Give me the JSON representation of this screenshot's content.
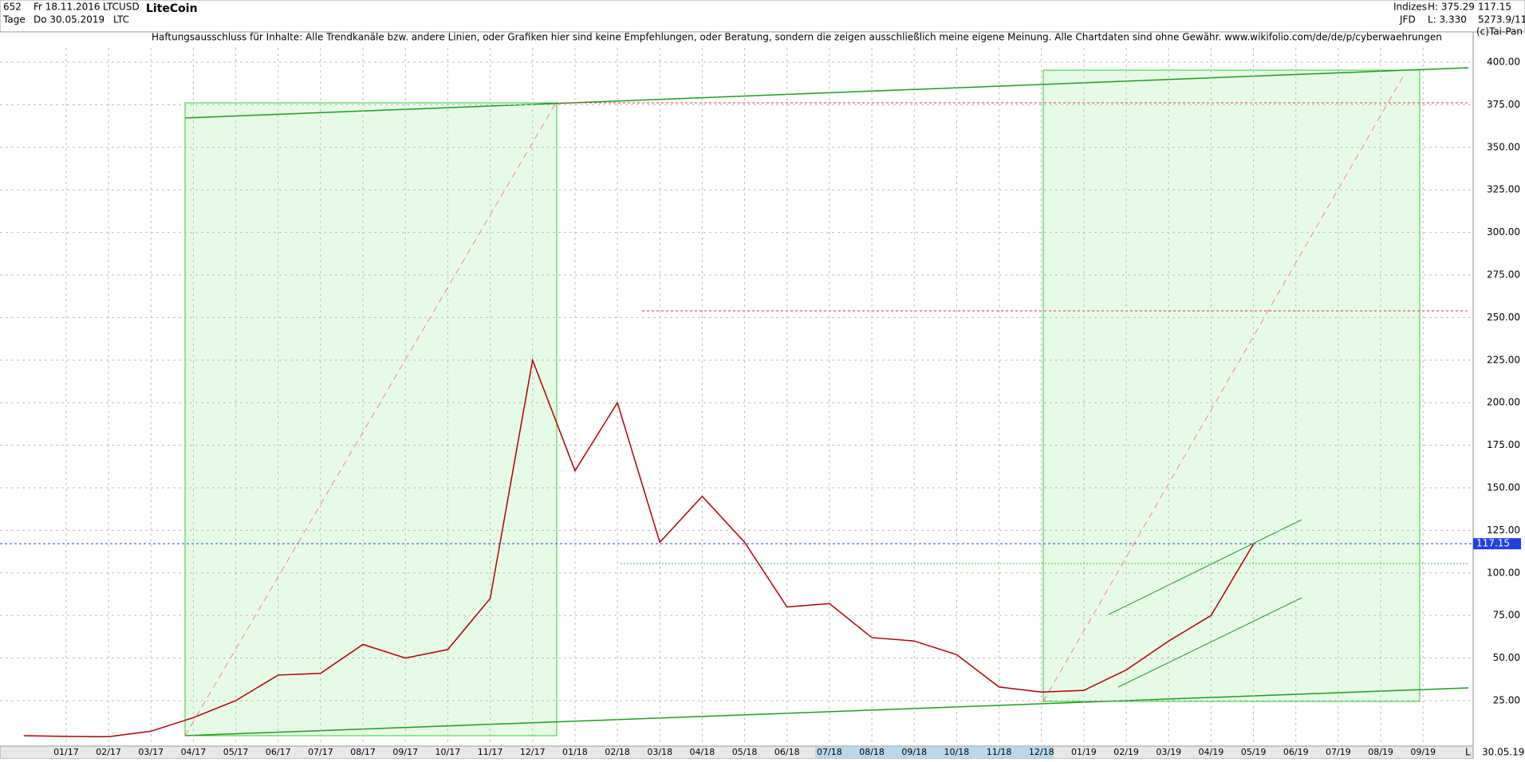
{
  "header": {
    "count": "652",
    "start_date": "Fr 18.11.2016",
    "period": "Tage",
    "end_date": "Do 30.05.2019",
    "symbol": "LTCUSD",
    "short": "LTC",
    "group": "Indizes",
    "source": "JFD",
    "high": "H: 375.29",
    "low": "L: 3.330",
    "last": "117.15",
    "extra": "5273.9/11",
    "copyright": "(c)Tai-Pan",
    "disclaimer": "Haftungsausschluss für Inhalte: Alle Trendkanäle bzw. andere Linien, oder Grafiken hier sind keine Empfehlungen, oder Beratung, sondern die zeigen ausschließlich meine eigene Meinung. Alle Chartdaten sind ohne Gewähr.  www.wikifolio.com/de/de/p/cyberwaehrungen"
  },
  "footer": {
    "date": "30.05.19",
    "scale": "L"
  },
  "chart_data": {
    "type": "line",
    "title": "LiteCoin",
    "categories": [
      null,
      "01/17",
      "02/17",
      "03/17",
      "04/17",
      "05/17",
      "06/17",
      "07/17",
      "08/17",
      "09/17",
      "10/17",
      "11/17",
      "12/17",
      "01/18",
      "02/18",
      "03/18",
      "04/18",
      "05/18",
      "06/18",
      "07/18",
      "08/18",
      "09/18",
      "10/18",
      "11/18",
      "12/18",
      "01/19",
      "02/19",
      "03/19",
      "04/19",
      "05/19",
      "06/19",
      "07/19",
      "08/19",
      "09/19"
    ],
    "values": [
      4.4,
      4,
      3.8,
      7,
      15,
      25,
      40,
      41,
      58,
      50,
      55,
      85,
      225,
      160,
      200,
      118,
      145,
      118,
      80,
      82,
      62,
      60,
      52,
      33,
      30,
      31,
      43,
      60,
      75,
      117,
      null,
      null,
      null,
      null
    ],
    "color": "#b00000",
    "ylim": [
      -1.7,
      413.6
    ],
    "yticks": [
      {
        "value": 25,
        "label": "25.00"
      },
      {
        "value": 50,
        "label": "50.00"
      },
      {
        "value": 75,
        "label": "75.00"
      },
      {
        "value": 100,
        "label": "100.00"
      },
      {
        "value": 125,
        "label": "125.00"
      },
      {
        "value": 150,
        "label": "150.00"
      },
      {
        "value": 175,
        "label": "175.00"
      },
      {
        "value": 200,
        "label": "200.00"
      },
      {
        "value": 225,
        "label": "225.00"
      },
      {
        "value": 250,
        "label": "250.00"
      },
      {
        "value": 275,
        "label": "275.00"
      },
      {
        "value": 300,
        "label": "300.00"
      },
      {
        "value": 325,
        "label": "325.00"
      },
      {
        "value": 350,
        "label": "350.00"
      },
      {
        "value": 375,
        "label": "375.00"
      },
      {
        "value": 400,
        "label": "400.00"
      }
    ],
    "grid": true,
    "last_price": {
      "value": 117.15,
      "label": "117.15"
    }
  }
}
